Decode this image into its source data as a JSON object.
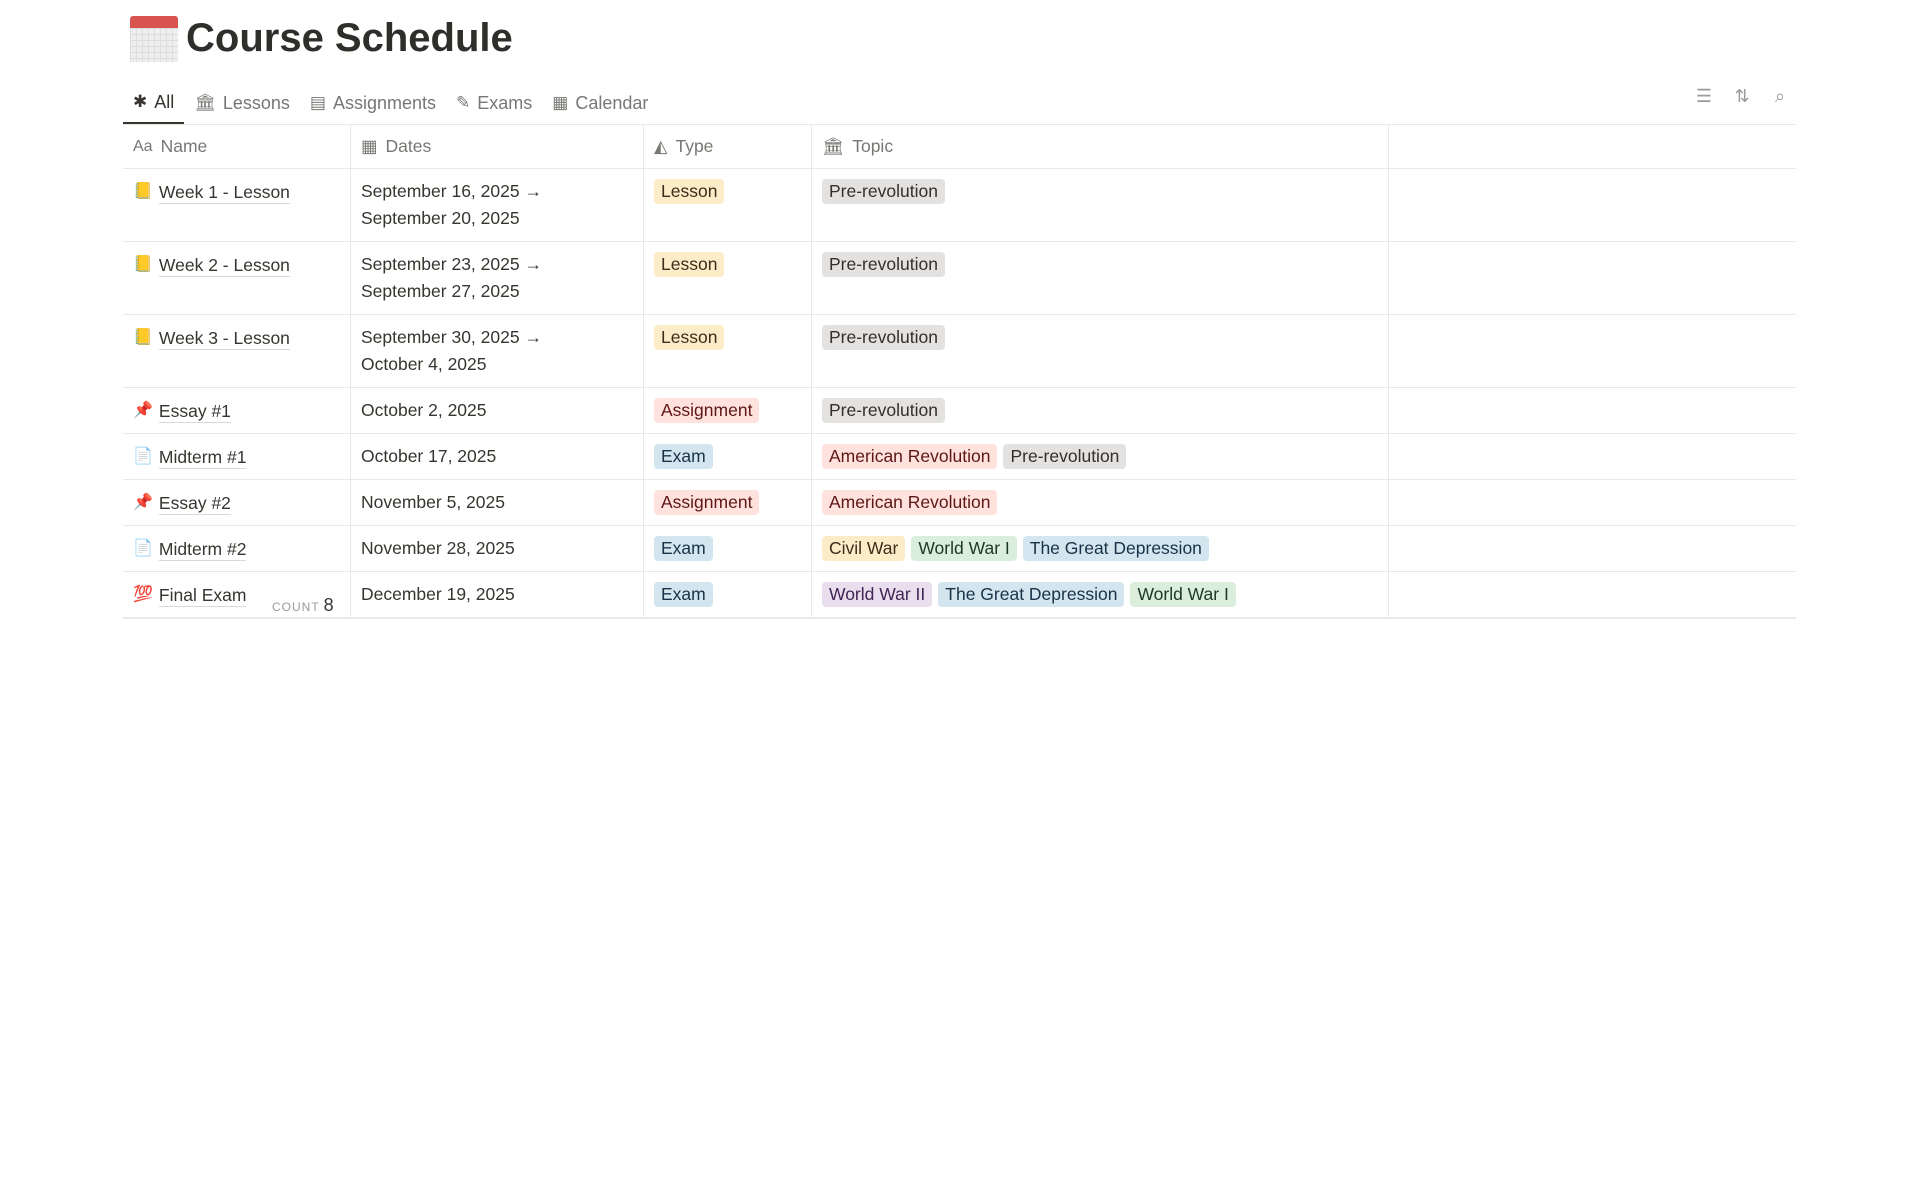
{
  "page": {
    "title": "Course Schedule",
    "icon": "calendar-emoji"
  },
  "tabs": [
    {
      "label": "All",
      "icon": "asterisk-icon"
    },
    {
      "label": "Lessons",
      "icon": "bank-icon"
    },
    {
      "label": "Assignments",
      "icon": "notebook-icon"
    },
    {
      "label": "Exams",
      "icon": "brush-icon"
    },
    {
      "label": "Calendar",
      "icon": "calendar-icon"
    }
  ],
  "toolbar": [
    "filter-icon",
    "sort-icon",
    "search-icon"
  ],
  "columns": [
    {
      "label": "Name",
      "icon": "Aa"
    },
    {
      "label": "Dates",
      "icon": "calendar-icon"
    },
    {
      "label": "Type",
      "icon": "shapes-icon"
    },
    {
      "label": "Topic",
      "icon": "bank-icon"
    }
  ],
  "rows": [
    {
      "emoji": "📒",
      "name": "Week 1 - Lesson",
      "dates": [
        "September 16, 2025 →",
        "September 20, 2025"
      ],
      "type": "Lesson",
      "topics": [
        "Pre-revolution"
      ]
    },
    {
      "emoji": "📒",
      "name": "Week 2 - Lesson",
      "dates": [
        "September 23, 2025 →",
        "September 27, 2025"
      ],
      "type": "Lesson",
      "topics": [
        "Pre-revolution"
      ]
    },
    {
      "emoji": "📒",
      "name": "Week 3 - Lesson",
      "dates": [
        "September 30, 2025 →",
        "October 4, 2025"
      ],
      "type": "Lesson",
      "topics": [
        "Pre-revolution"
      ]
    },
    {
      "emoji": "📌",
      "name": "Essay #1",
      "dates": [
        "October 2, 2025"
      ],
      "type": "Assignment",
      "topics": [
        "Pre-revolution"
      ]
    },
    {
      "emoji": "📄",
      "name": "Midterm #1",
      "dates": [
        "October 17, 2025"
      ],
      "type": "Exam",
      "topics": [
        "American Revolution",
        "Pre-revolution"
      ]
    },
    {
      "emoji": "📌",
      "name": "Essay #2",
      "dates": [
        "November 5, 2025"
      ],
      "type": "Assignment",
      "topics": [
        "American Revolution"
      ]
    },
    {
      "emoji": "📄",
      "name": "Midterm #2",
      "dates": [
        "November 28, 2025"
      ],
      "type": "Exam",
      "topics": [
        "Civil War",
        "World War I",
        "The Great Depression"
      ]
    },
    {
      "emoji": "💯",
      "name": "Final Exam",
      "dates": [
        "December 19, 2025"
      ],
      "type": "Exam",
      "topics": [
        "World War II",
        "The Great Depression",
        "World War I"
      ]
    }
  ],
  "count": {
    "label": "COUNT",
    "value": "8"
  },
  "tag_colors": {
    "Lesson": [
      "#fdecc8",
      "#402c1b"
    ],
    "Assignment": [
      "#ffe2dd",
      "#5d1715"
    ],
    "Exam": [
      "#d3e5ef",
      "#183347"
    ],
    "Pre-revolution": [
      "#e3e2e0",
      "#32302c"
    ],
    "American Revolution": [
      "#ffe2dd",
      "#5d1715"
    ],
    "Civil War": [
      "#fdecc8",
      "#402c1b"
    ],
    "World War I": [
      "#dbeddb",
      "#1c3829"
    ],
    "The Great Depression": [
      "#d3e5ef",
      "#183347"
    ],
    "World War II": [
      "#e8deee",
      "#412454"
    ]
  }
}
